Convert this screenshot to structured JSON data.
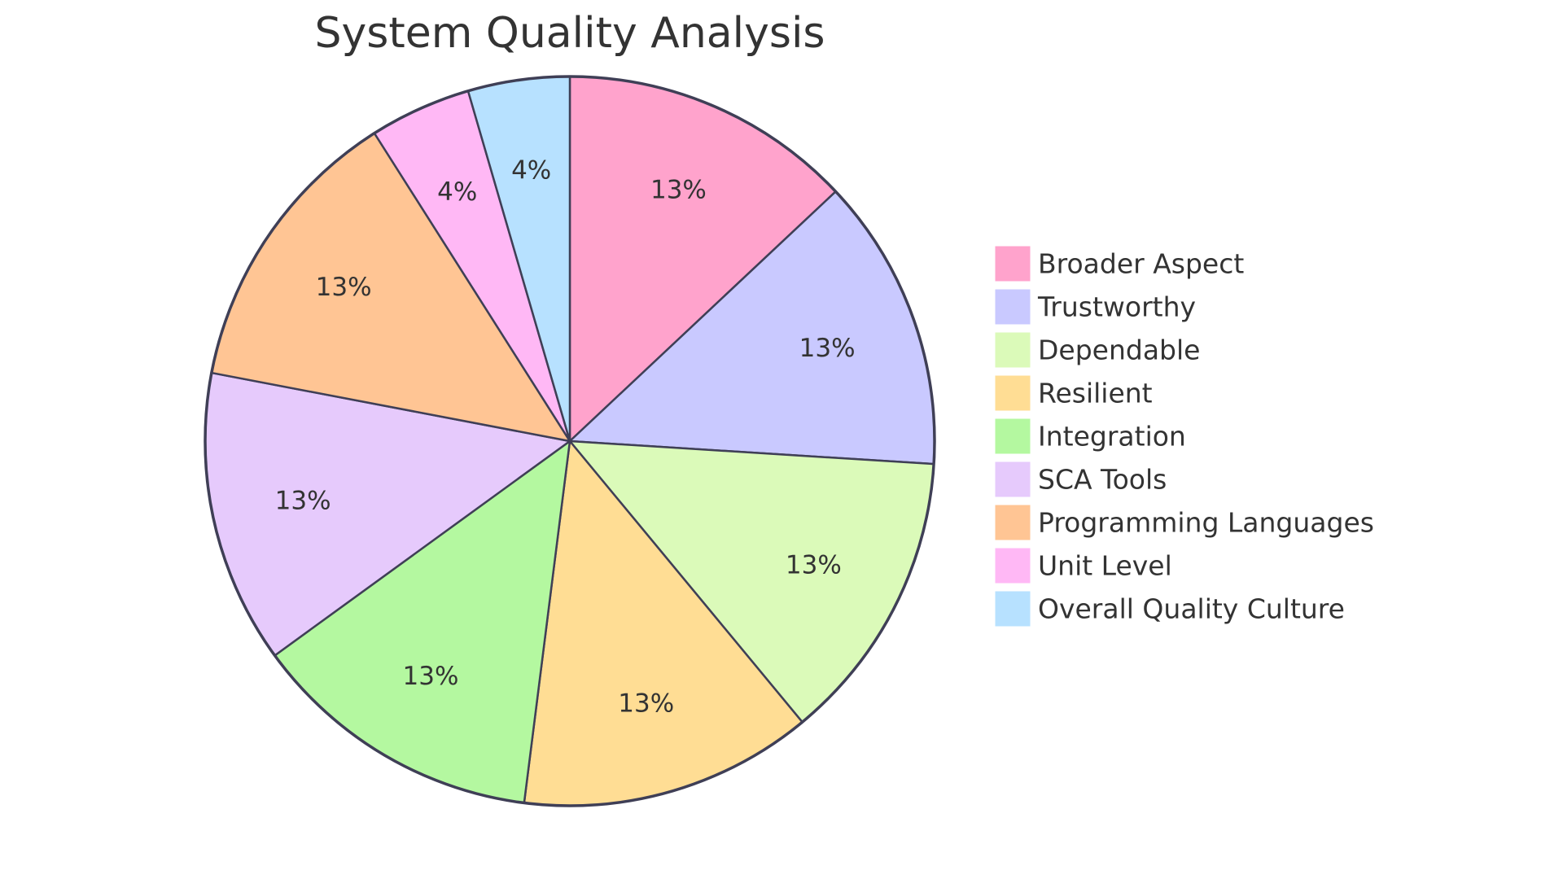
{
  "chart_data": {
    "type": "pie",
    "title": "System Quality Analysis",
    "slices": [
      {
        "label": "Broader Aspect",
        "value": 13,
        "display": "13%",
        "color": "#FFA3CC"
      },
      {
        "label": "Trustworthy",
        "value": 13,
        "display": "13%",
        "color": "#C9C9FF"
      },
      {
        "label": "Dependable",
        "value": 13,
        "display": "13%",
        "color": "#DBFAB9"
      },
      {
        "label": "Resilient",
        "value": 13,
        "display": "13%",
        "color": "#FFDD94"
      },
      {
        "label": "Integration",
        "value": 13,
        "display": "13%",
        "color": "#B4F8A0"
      },
      {
        "label": "SCA Tools",
        "value": 13,
        "display": "13%",
        "color": "#E6CAFC"
      },
      {
        "label": "Programming Languages",
        "value": 13,
        "display": "13%",
        "color": "#FFC594"
      },
      {
        "label": "Unit Level",
        "value": 4.5,
        "display": "4%",
        "color": "#FFB8F5"
      },
      {
        "label": "Overall Quality Culture",
        "value": 4.5,
        "display": "4%",
        "color": "#B7E1FF"
      }
    ],
    "legend_position": "right",
    "stroke_color": "#3F3F56"
  }
}
